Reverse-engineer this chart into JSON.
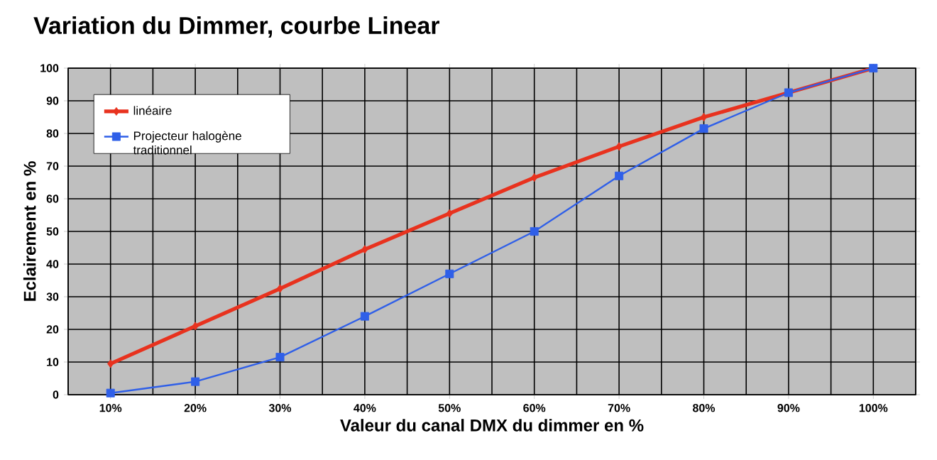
{
  "chart_data": {
    "type": "line",
    "title": "Variation du Dimmer, courbe Linear",
    "xlabel": "Valeur du canal DMX du dimmer en %",
    "ylabel": "Eclairement en %",
    "categories": [
      "10%",
      "20%",
      "30%",
      "40%",
      "50%",
      "60%",
      "70%",
      "80%",
      "90%",
      "100%"
    ],
    "series": [
      {
        "name": "linéaire",
        "color": "#e8321e",
        "marker": "diamond",
        "values": [
          9.5,
          21,
          32.5,
          44.5,
          55.5,
          66.5,
          76,
          85,
          92.5,
          100
        ]
      },
      {
        "name": "Projecteur halogène traditionnel",
        "color": "#2f5fe8",
        "marker": "square",
        "values": [
          0.5,
          4,
          11.5,
          24,
          37,
          50,
          67,
          81.5,
          92.5,
          100
        ]
      }
    ],
    "ylim": [
      0,
      100
    ],
    "yticks": [
      0,
      10,
      20,
      30,
      40,
      50,
      60,
      70,
      80,
      90,
      100
    ],
    "grid": true,
    "legend": "top left",
    "line_style": "solid"
  }
}
